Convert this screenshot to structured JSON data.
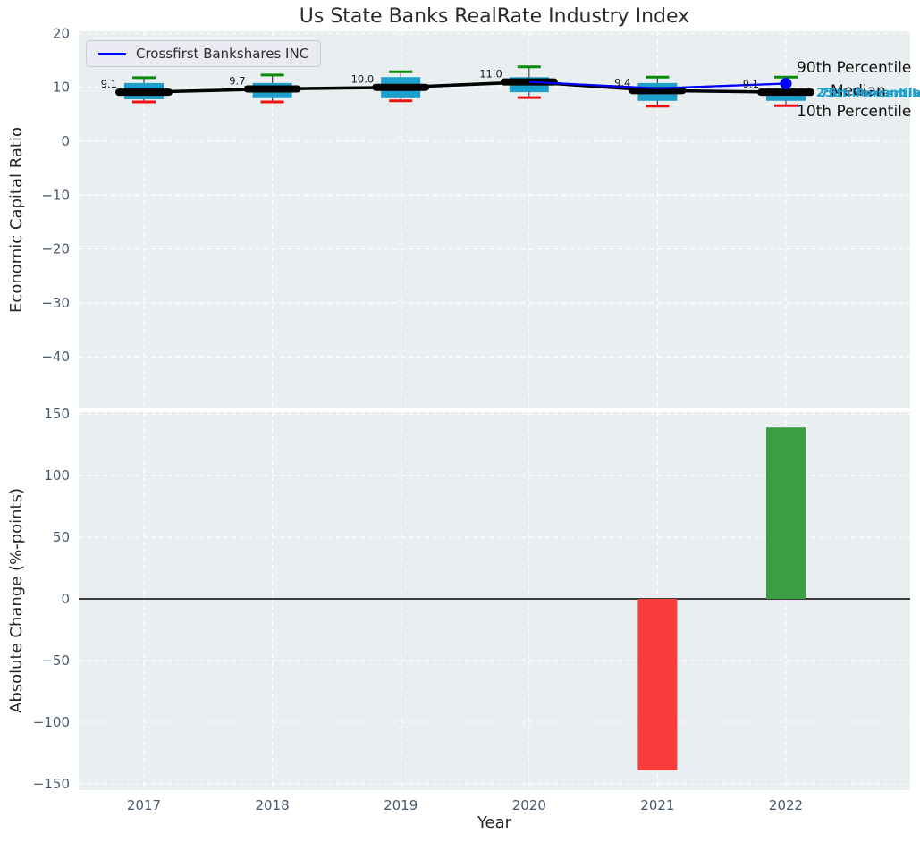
{
  "title": "Us State Banks RealRate Industry Index",
  "legend": {
    "label": "Crossfirst Bankshares INC"
  },
  "axis": {
    "top_ylabel": "Economic Capital Ratio",
    "bottom_ylabel": "Absolute Change (%-points)",
    "xlabel": "Year"
  },
  "annotations": {
    "p90": "90th Percentile",
    "median": "Median",
    "p75": "75th Percentile",
    "p25": "25th Percentile",
    "p10": "10th Percentile"
  },
  "colors": {
    "box_fill": "#1d9fcc",
    "cap_high": "#0a8c0a",
    "cap_low": "#ef1111",
    "whisker": "#444444",
    "median_line": "#000000",
    "company_line": "#0000ff",
    "bar_positive": "#3b9e41",
    "bar_negative": "#fa3c3c",
    "panel_bg": "#e9eef0",
    "grid": "#ffffff",
    "tick_text": "#47586b",
    "label_text": "#1a1a1a",
    "zero_line": "#000000"
  },
  "chart_data": [
    {
      "type": "box",
      "title": "Us State Banks RealRate Industry Index",
      "ylabel": "Economic Capital Ratio",
      "categories": [
        "2017",
        "2018",
        "2019",
        "2020",
        "2021",
        "2022"
      ],
      "yticks": [
        20,
        10,
        0,
        -10,
        -20,
        -30,
        -40
      ],
      "ytick_labels": [
        "20",
        "10",
        "0",
        "−10",
        "−20",
        "−30",
        "−40"
      ],
      "ylim": [
        -49.5,
        20.4
      ],
      "grid": true,
      "legend_position": "upper left",
      "boxes": [
        {
          "year": "2017",
          "p90": 11.8,
          "p75": 10.8,
          "median": 9.1,
          "p25": 7.8,
          "p10": 7.3,
          "label": "9.1"
        },
        {
          "year": "2018",
          "p90": 12.3,
          "p75": 10.8,
          "median": 9.7,
          "p25": 8.0,
          "p10": 7.3,
          "label": "9.7"
        },
        {
          "year": "2019",
          "p90": 12.9,
          "p75": 11.9,
          "median": 10.0,
          "p25": 8.0,
          "p10": 7.5,
          "label": "10.0"
        },
        {
          "year": "2020",
          "p90": 13.8,
          "p75": 11.9,
          "median": 11.0,
          "p25": 9.1,
          "p10": 8.1,
          "label": "11.0"
        },
        {
          "year": "2021",
          "p90": 11.9,
          "p75": 10.8,
          "median": 9.4,
          "p25": 7.5,
          "p10": 6.5,
          "label": "9.4"
        },
        {
          "year": "2022",
          "p90": 11.9,
          "p75": 9.3,
          "median": 9.1,
          "p25": 7.5,
          "p10": 6.6,
          "label": "9.1"
        }
      ],
      "series": [
        {
          "name": "Crossfirst Bankshares INC",
          "values": [
            9.1,
            9.7,
            10.0,
            11.0,
            9.8,
            10.7
          ],
          "marker_year": "2022"
        }
      ]
    },
    {
      "type": "bar",
      "ylabel": "Absolute Change (%-points)",
      "xlabel": "Year",
      "categories": [
        "2017",
        "2018",
        "2019",
        "2020",
        "2021",
        "2022"
      ],
      "values": [
        0,
        0,
        0,
        0,
        -139,
        139
      ],
      "yticks": [
        150,
        100,
        50,
        0,
        -50,
        -100,
        -150
      ],
      "ytick_labels": [
        "150",
        "100",
        "50",
        "0",
        "−50",
        "−100",
        "−150"
      ],
      "ylim": [
        -155,
        155
      ],
      "grid": true
    }
  ]
}
